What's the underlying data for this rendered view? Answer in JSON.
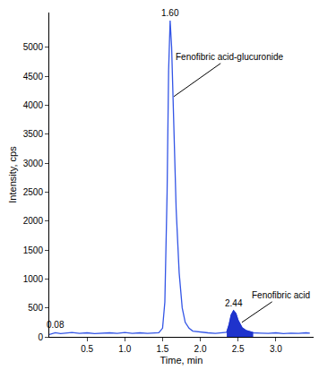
{
  "chart_data": {
    "type": "line",
    "x_label": "Time, min",
    "y_label": "Intensity, cps",
    "x": [
      0,
      0.08,
      0.15,
      0.2,
      0.3,
      0.4,
      0.5,
      0.6,
      0.7,
      0.8,
      0.9,
      1.0,
      1.1,
      1.2,
      1.3,
      1.4,
      1.45,
      1.5,
      1.53,
      1.56,
      1.58,
      1.6,
      1.62,
      1.65,
      1.68,
      1.72,
      1.76,
      1.8,
      1.85,
      1.9,
      2.0,
      2.1,
      2.2,
      2.3,
      2.35,
      2.38,
      2.41,
      2.44,
      2.47,
      2.5,
      2.55,
      2.6,
      2.65,
      2.7,
      2.8,
      2.9,
      3.0,
      3.1,
      3.2,
      3.3,
      3.4,
      3.45
    ],
    "series": [
      {
        "type": "line",
        "color": "#3355e6",
        "values": [
          40,
          70,
          55,
          60,
          75,
          60,
          70,
          55,
          65,
          70,
          60,
          75,
          60,
          70,
          60,
          65,
          70,
          150,
          600,
          2500,
          4600,
          5460,
          5000,
          3600,
          2200,
          1100,
          500,
          250,
          150,
          100,
          80,
          70,
          60,
          70,
          80,
          200,
          380,
          450,
          400,
          280,
          160,
          110,
          90,
          70,
          65,
          60,
          70,
          55,
          65,
          60,
          70,
          65
        ]
      },
      {
        "type": "area",
        "color": "#1f33cc",
        "values": [
          null,
          null,
          null,
          null,
          null,
          null,
          null,
          null,
          null,
          null,
          null,
          null,
          null,
          null,
          null,
          null,
          null,
          null,
          null,
          null,
          null,
          null,
          null,
          null,
          null,
          null,
          null,
          null,
          null,
          null,
          null,
          null,
          null,
          null,
          80,
          200,
          380,
          450,
          400,
          280,
          160,
          110,
          90,
          70,
          null,
          null,
          null,
          null,
          null,
          null,
          null,
          null
        ]
      }
    ],
    "xlim": [
      0,
      3.5
    ],
    "xticks": [
      0.5,
      {
        "value": 1,
        "label": "1.0"
      },
      1.5,
      {
        "value": 2,
        "label": "2.0"
      },
      2.5,
      {
        "value": 3,
        "label": "3.0"
      }
    ],
    "ylim": [
      0,
      5600
    ],
    "yticks": [
      0,
      500,
      1000,
      1500,
      2000,
      2500,
      3000,
      3500,
      4000,
      4500,
      5000
    ],
    "grid": false,
    "peak_labels": [
      {
        "text": "1.60",
        "x": 1.6,
        "y": 5460
      },
      {
        "text": "2.44",
        "x": 2.44,
        "y": 450
      },
      {
        "text": "0.08",
        "x": 0.08,
        "y": 70
      }
    ],
    "callouts": [
      {
        "text": "Fenofibric acid-glucuronide",
        "x": 1.65,
        "y": 4150
      },
      {
        "text": "Fenofibric acid",
        "x": 2.55,
        "y": 250
      }
    ]
  }
}
